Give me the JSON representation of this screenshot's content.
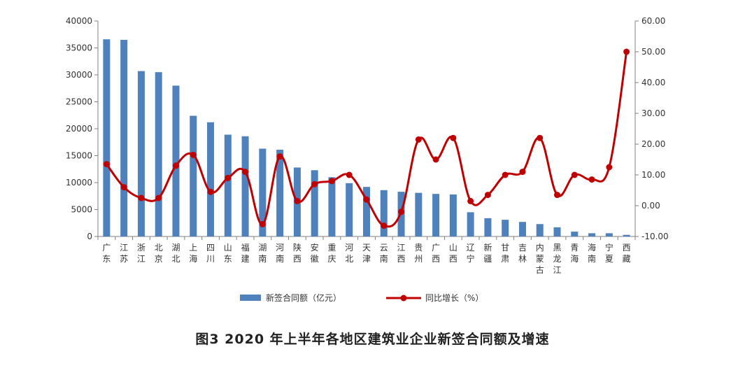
{
  "caption": "图3   2020 年上半年各地区建筑业企业新签合同额及增速",
  "chart_data": {
    "type": "bar",
    "categories": [
      "广东",
      "江苏",
      "浙江",
      "北京",
      "湖北",
      "上海",
      "四川",
      "山东",
      "福建",
      "湖南",
      "河南",
      "陕西",
      "安徽",
      "重庆",
      "河北",
      "天津",
      "云南",
      "江西",
      "贵州",
      "广西",
      "山西",
      "辽宁",
      "新疆",
      "甘肃",
      "吉林",
      "内蒙古",
      "黑龙江",
      "青海",
      "海南",
      "宁夏",
      "西藏"
    ],
    "series": [
      {
        "name": "新签合同额（亿元）",
        "type": "bar",
        "axis": "left",
        "color": "#4f81bd",
        "values": [
          36600,
          36500,
          30700,
          30500,
          28000,
          22400,
          21200,
          18900,
          18600,
          16300,
          16100,
          12800,
          12300,
          11000,
          9900,
          9200,
          8600,
          8300,
          8100,
          7900,
          7800,
          4500,
          3400,
          3100,
          2700,
          2300,
          1700,
          900,
          600,
          600,
          300
        ]
      },
      {
        "name": "同比增长（%）",
        "type": "line",
        "axis": "right",
        "color": "#c00000",
        "values": [
          13.5,
          6.0,
          2.5,
          2.5,
          13.0,
          16.5,
          4.5,
          9.0,
          11.0,
          -6.0,
          16.0,
          1.5,
          7.0,
          8.0,
          10.0,
          2.0,
          -6.5,
          -2.0,
          21.5,
          15.0,
          22.0,
          1.5,
          3.5,
          10.0,
          11.0,
          22.0,
          3.5,
          10.0,
          8.5,
          12.5,
          50.0
        ]
      }
    ],
    "y_left": {
      "ylim": [
        0,
        40000
      ],
      "ticks": [
        "0",
        "5000",
        "10000",
        "15000",
        "20000",
        "25000",
        "30000",
        "35000",
        "40000"
      ]
    },
    "y_right": {
      "ylim": [
        -10,
        60
      ],
      "ticks": [
        "-10.00",
        "0.00",
        "10.00",
        "20.00",
        "30.00",
        "40.00",
        "50.00",
        "60.00"
      ]
    },
    "legend": {
      "position": "bottom",
      "entries": [
        "新签合同额（亿元）",
        "同比增长（%）"
      ]
    },
    "grid": false
  }
}
